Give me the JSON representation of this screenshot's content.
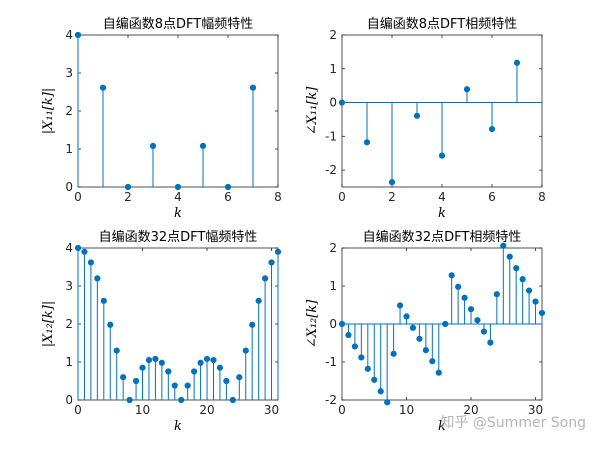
{
  "figure": {
    "watermark": "知乎 @Summer Song",
    "stem_color": "#0072bd",
    "axis_color": "#262626"
  },
  "chart_data": [
    {
      "type": "stem",
      "title": "自编函数8点DFT幅频特性",
      "xlabel": "k",
      "ylabel": "|X₁₁[k]|",
      "xlim": [
        0,
        8
      ],
      "ylim": [
        0,
        4
      ],
      "xticks": [
        0,
        2,
        4,
        6,
        8
      ],
      "yticks": [
        0,
        1,
        2,
        3,
        4
      ],
      "x": [
        0,
        1,
        2,
        3,
        4,
        5,
        6,
        7
      ],
      "y": [
        4,
        2.613,
        0,
        1.082,
        0,
        1.082,
        0,
        2.613
      ]
    },
    {
      "type": "stem",
      "title": "自编函数8点DFT相频特性",
      "xlabel": "k",
      "ylabel": "∠X₁₁[k]",
      "xlim": [
        0,
        8
      ],
      "ylim": [
        -2.5,
        2
      ],
      "xticks": [
        0,
        2,
        4,
        6,
        8
      ],
      "yticks": [
        -2,
        -1,
        0,
        1,
        2
      ],
      "x": [
        0,
        1,
        2,
        3,
        4,
        5,
        6,
        7
      ],
      "y": [
        0,
        -1.178,
        -2.356,
        -0.393,
        -1.571,
        0.393,
        -0.785,
        1.178
      ]
    },
    {
      "type": "stem",
      "title": "自编函数32点DFT幅频特性",
      "xlabel": "k",
      "ylabel": "|X₁₂[k]|",
      "xlim": [
        0,
        31
      ],
      "ylim": [
        0,
        4
      ],
      "xticks": [
        0,
        10,
        20,
        30
      ],
      "yticks": [
        0,
        1,
        2,
        3,
        4
      ],
      "x": [
        0,
        1,
        2,
        3,
        4,
        5,
        6,
        7,
        8,
        9,
        10,
        11,
        12,
        13,
        14,
        15,
        16,
        17,
        18,
        19,
        20,
        21,
        22,
        23,
        24,
        25,
        26,
        27,
        28,
        29,
        30,
        31
      ],
      "y": [
        4,
        3.9,
        3.62,
        3.2,
        2.61,
        1.98,
        1.3,
        0.6,
        0,
        0.5,
        0.85,
        1.05,
        1.08,
        0.98,
        0.75,
        0.38,
        0,
        0.38,
        0.75,
        0.98,
        1.08,
        1.05,
        0.85,
        0.5,
        0,
        0.6,
        1.3,
        1.98,
        2.61,
        3.2,
        3.62,
        3.9
      ]
    },
    {
      "type": "stem",
      "title": "自编函数32点DFT相频特性",
      "xlabel": "k",
      "ylabel": "∠X₁₂[k]",
      "xlim": [
        0,
        31
      ],
      "ylim": [
        -2,
        2
      ],
      "xticks": [
        0,
        10,
        20,
        30
      ],
      "yticks": [
        -2,
        -1,
        0,
        1,
        2
      ],
      "x": [
        0,
        1,
        2,
        3,
        4,
        5,
        6,
        7,
        8,
        9,
        10,
        11,
        12,
        13,
        14,
        15,
        16,
        17,
        18,
        19,
        20,
        21,
        22,
        23,
        24,
        25,
        26,
        27,
        28,
        29,
        30,
        31
      ],
      "y": [
        0,
        -0.29,
        -0.59,
        -0.88,
        -1.18,
        -1.47,
        -1.77,
        -2.06,
        -0.785,
        0.49,
        0.2,
        -0.1,
        -0.39,
        -0.69,
        -0.98,
        -1.28,
        0,
        1.28,
        0.98,
        0.69,
        0.39,
        0.1,
        -0.2,
        -0.49,
        0.785,
        2.06,
        1.77,
        1.47,
        1.18,
        0.88,
        0.59,
        0.29
      ]
    }
  ]
}
